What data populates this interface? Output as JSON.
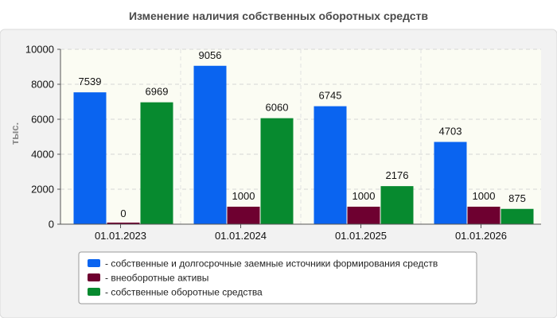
{
  "chart_data": {
    "type": "bar",
    "title": "Изменение наличия собственных оборотных средств",
    "ylabel": "тыс.",
    "xlabel": "",
    "categories": [
      "01.01.2023",
      "01.01.2024",
      "01.01.2025",
      "01.01.2026"
    ],
    "ylim": [
      0,
      10000
    ],
    "yticks": [
      0,
      2000,
      4000,
      6000,
      8000,
      10000
    ],
    "grid": true,
    "legend_position": "bottom",
    "series": [
      {
        "name": "- собственные и долгосрочные заемные источники формирования средств",
        "color": "#0a64f0",
        "values": [
          7539,
          9056,
          6745,
          4703
        ]
      },
      {
        "name": "- внеоборотные активы",
        "color": "#6e0030",
        "values": [
          0,
          1000,
          1000,
          1000
        ]
      },
      {
        "name": "- собственные оборотные средства",
        "color": "#078a2f",
        "values": [
          6969,
          6060,
          2176,
          875
        ]
      }
    ]
  }
}
